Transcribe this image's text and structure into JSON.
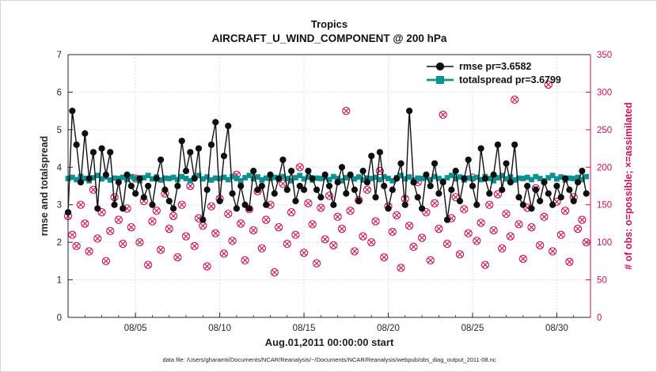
{
  "figure": {
    "title_line1": "Tropics",
    "title_line2": "AIRCRAFT_U_WIND_COMPONENT @ 200 hPa",
    "xlabel": "Aug.01,2011 00:00:00 start",
    "ylabel_left": "rmse and totalspread",
    "ylabel_right": "# of obs: o=possible; ×=assimilated",
    "footnote": "data file: /Users/gharamti/Documents/NCAR/Reanalysis/~/Documents/NCAR/Reanalysis/webpub/obs_diag_output_2011-08.nc",
    "colors": {
      "rmse": "#101010",
      "totalspread": "#0f9191",
      "obs": "#cc1155",
      "axis": "#262626",
      "grid": "#d9d9d9"
    }
  },
  "legend": [
    {
      "label": "rmse pr=3.6582",
      "series": "rmse"
    },
    {
      "label": "totalspread pr=3.6799",
      "series": "totalspread"
    }
  ],
  "chart_data": {
    "type": "line",
    "title": "Tropics — AIRCRAFT_U_WIND_COMPONENT @ 200 hPa",
    "x_axis": {
      "min_day": 1,
      "max_day": 32,
      "data_start_day": 1,
      "step_days": 0.25,
      "month": "08/2011"
    },
    "x_ticks": [
      {
        "day": 5,
        "label": "08/05"
      },
      {
        "day": 10,
        "label": "08/10"
      },
      {
        "day": 15,
        "label": "08/15"
      },
      {
        "day": 20,
        "label": "08/20"
      },
      {
        "day": 25,
        "label": "08/25"
      },
      {
        "day": 30,
        "label": "08/30"
      }
    ],
    "y_left": {
      "min": 0,
      "max": 7,
      "ticks": [
        0,
        1,
        2,
        3,
        4,
        5,
        6,
        7
      ]
    },
    "y_right": {
      "min": 0,
      "max": 350,
      "ticks": [
        0,
        50,
        100,
        150,
        200,
        250,
        300,
        350
      ]
    },
    "series": [
      {
        "name": "rmse",
        "axis": "left",
        "marker": "filled-circle",
        "color_key": "rmse",
        "values": [
          2.8,
          5.5,
          4.6,
          3.6,
          4.9,
          3.7,
          4.4,
          2.9,
          4.5,
          3.8,
          4.4,
          3.0,
          3.6,
          2.9,
          3.8,
          3.5,
          3.3,
          3.7,
          3.2,
          3.5,
          3.0,
          3.7,
          4.2,
          3.4,
          3.1,
          2.9,
          3.5,
          4.7,
          3.9,
          4.4,
          3.7,
          4.5,
          2.6,
          3.4,
          4.6,
          5.2,
          3.1,
          4.3,
          5.1,
          3.3,
          2.9,
          3.5,
          3.0,
          2.9,
          3.9,
          3.4,
          3.5,
          3.0,
          3.8,
          3.3,
          3.7,
          4.2,
          3.4,
          3.9,
          3.1,
          3.5,
          3.4,
          3.9,
          3.7,
          3.4,
          3.2,
          3.8,
          3.5,
          3.0,
          3.6,
          4.0,
          3.3,
          3.8,
          3.4,
          3.1,
          3.9,
          3.6,
          4.3,
          3.2,
          4.4,
          3.5,
          2.9,
          3.4,
          3.7,
          4.1,
          3.0,
          5.5,
          3.6,
          3.2,
          2.9,
          3.8,
          3.5,
          4.1,
          3.3,
          3.6,
          2.6,
          3.4,
          3.9,
          3.1,
          3.7,
          4.2,
          3.5,
          3.0,
          4.5,
          3.7,
          3.3,
          3.8,
          4.6,
          3.4,
          4.1,
          3.6,
          4.6,
          3.2,
          3.0,
          3.5,
          2.9,
          3.4,
          3.1,
          3.6,
          3.3,
          3.0,
          3.5,
          3.2,
          3.7,
          3.4,
          3.1,
          3.6,
          3.9,
          3.3
        ]
      },
      {
        "name": "totalspread",
        "axis": "left",
        "marker": "filled-square",
        "color_key": "totalspread",
        "values": [
          3.7,
          3.73,
          3.67,
          3.75,
          3.7,
          3.64,
          3.72,
          3.78,
          3.69,
          3.74,
          3.66,
          3.71,
          3.7,
          3.73,
          3.67,
          3.75,
          3.7,
          3.64,
          3.72,
          3.78,
          3.69,
          3.74,
          3.66,
          3.71,
          3.7,
          3.73,
          3.67,
          3.75,
          3.7,
          3.64,
          3.72,
          3.78,
          3.69,
          3.74,
          3.66,
          3.71,
          3.7,
          3.73,
          3.67,
          3.75,
          3.7,
          3.64,
          3.72,
          3.78,
          3.69,
          3.74,
          3.66,
          3.71,
          3.7,
          3.73,
          3.67,
          3.75,
          3.7,
          3.64,
          3.72,
          3.78,
          3.69,
          3.74,
          3.66,
          3.71,
          3.7,
          3.73,
          3.67,
          3.75,
          3.7,
          3.64,
          3.72,
          3.78,
          3.69,
          3.74,
          3.66,
          3.71,
          3.7,
          3.73,
          3.67,
          3.75,
          3.7,
          3.64,
          3.72,
          3.78,
          3.69,
          3.74,
          3.66,
          3.71,
          3.7,
          3.73,
          3.67,
          3.75,
          3.7,
          3.64,
          3.72,
          3.78,
          3.69,
          3.74,
          3.66,
          3.71,
          3.7,
          3.73,
          3.67,
          3.75,
          3.7,
          3.64,
          3.72,
          3.78,
          3.69,
          3.74,
          3.66,
          3.71,
          3.7,
          3.73,
          3.67,
          3.75,
          3.7,
          3.64,
          3.72,
          3.78,
          3.69,
          3.74,
          3.66,
          3.71,
          3.7,
          3.73,
          3.67,
          3.75
        ]
      },
      {
        "name": "obs_possible",
        "axis": "right",
        "marker": "open-circle",
        "color_key": "obs",
        "values": [
          135,
          110,
          95,
          150,
          125,
          88,
          170,
          105,
          140,
          75,
          115,
          160,
          130,
          98,
          145,
          120,
          185,
          100,
          155,
          70,
          128,
          142,
          90,
          165,
          118,
          135,
          80,
          150,
          108,
          175,
          95,
          132,
          122,
          68,
          148,
          112,
          158,
          85,
          138,
          102,
          190,
          125,
          76,
          144,
          116,
          168,
          92,
          130,
          150,
          60,
          120,
          178,
          98,
          140,
          110,
          200,
          86,
          152,
          124,
          72,
          146,
          104,
          162,
          96,
          134,
          118,
          275,
          142,
          88,
          156,
          108,
          170,
          100,
          128,
          195,
          80,
          148,
          114,
          136,
          66,
          158,
          122,
          94,
          180,
          106,
          140,
          76,
          152,
          118,
          270,
          98,
          132,
          160,
          84,
          144,
          112,
          186,
          102,
          126,
          70,
          150,
          116,
          164,
          92,
          138,
          108,
          290,
          124,
          78,
          146,
          120,
          172,
          96,
          134,
          310,
          88,
          154,
          110,
          142,
          74,
          160,
          118,
          130,
          100
        ]
      },
      {
        "name": "obs_assimilated",
        "axis": "right",
        "marker": "x",
        "color_key": "obs",
        "values_ref": "obs_possible"
      }
    ]
  }
}
